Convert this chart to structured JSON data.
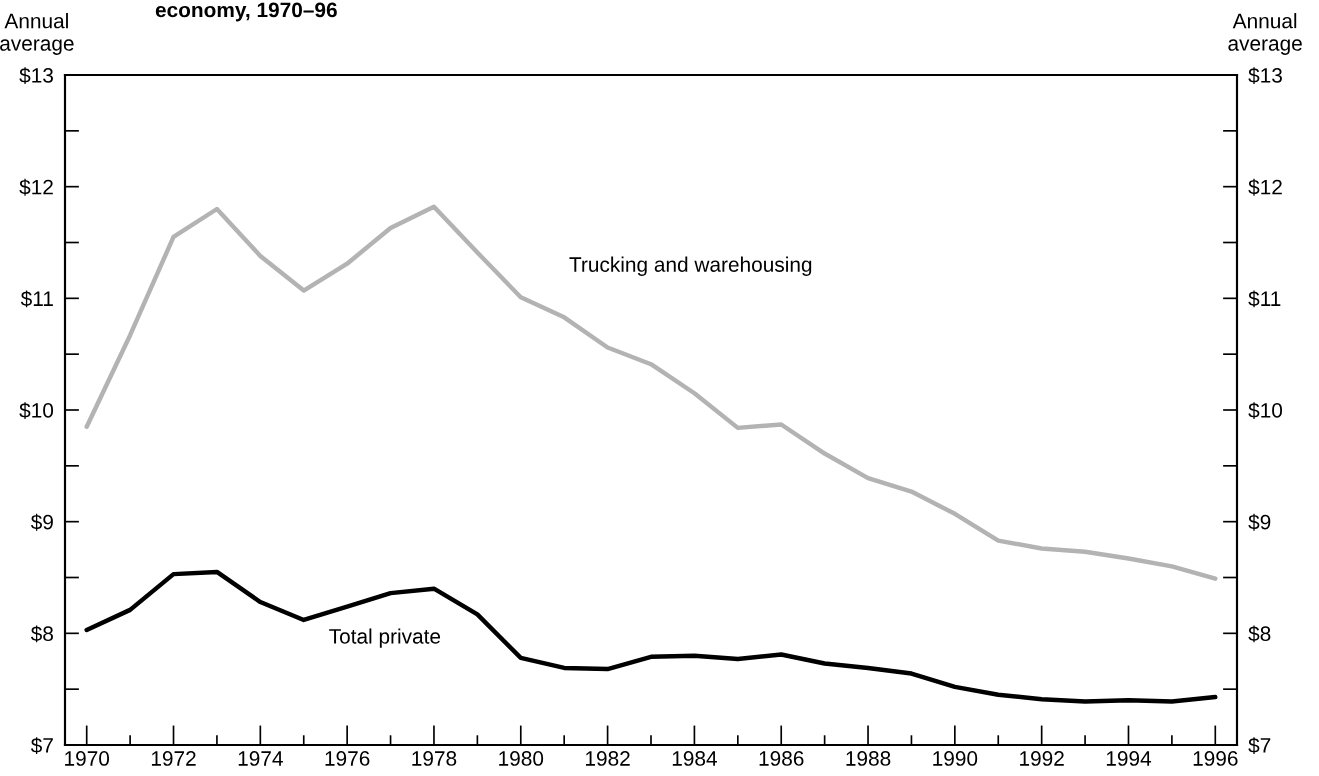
{
  "chart_data": {
    "type": "line",
    "title": "economy, 1970–96",
    "ylabel": "Annual\naverage",
    "y2label": "Annual\naverage",
    "x": [
      1970,
      1971,
      1972,
      1973,
      1974,
      1975,
      1976,
      1977,
      1978,
      1979,
      1980,
      1981,
      1982,
      1983,
      1984,
      1985,
      1986,
      1987,
      1988,
      1989,
      1990,
      1991,
      1992,
      1993,
      1994,
      1995,
      1996
    ],
    "series": [
      {
        "name": "Trucking and warehousing",
        "color": "#b3b3b3",
        "values": [
          9.85,
          10.67,
          11.55,
          11.8,
          11.38,
          11.07,
          11.31,
          11.63,
          11.82,
          11.41,
          11.01,
          10.83,
          10.56,
          10.41,
          10.15,
          9.84,
          9.87,
          9.61,
          9.39,
          9.27,
          9.07,
          8.83,
          8.76,
          8.73,
          8.67,
          8.6,
          8.49
        ]
      },
      {
        "name": "Total private",
        "color": "#000000",
        "values": [
          8.03,
          8.21,
          8.53,
          8.55,
          8.28,
          8.12,
          8.24,
          8.36,
          8.4,
          8.17,
          7.78,
          7.69,
          7.68,
          7.79,
          7.8,
          7.77,
          7.81,
          7.73,
          7.69,
          7.64,
          7.52,
          7.45,
          7.41,
          7.39,
          7.4,
          7.39,
          7.43
        ]
      }
    ],
    "xlim": [
      1969.5,
      1996.5
    ],
    "xticks": [
      1970,
      {
        "value": 1971,
        "label": null
      },
      1972,
      {
        "value": 1973,
        "label": null
      },
      1974,
      {
        "value": 1975,
        "label": null
      },
      1976,
      {
        "value": 1977,
        "label": null
      },
      1978,
      {
        "value": 1979,
        "label": null
      },
      1980,
      {
        "value": 1981,
        "label": null
      },
      1982,
      {
        "value": 1983,
        "label": null
      },
      1984,
      {
        "value": 1985,
        "label": null
      },
      1986,
      {
        "value": 1987,
        "label": null
      },
      1988,
      {
        "value": 1989,
        "label": null
      },
      1990,
      {
        "value": 1991,
        "label": null
      },
      1992,
      {
        "value": 1993,
        "label": null
      },
      1994,
      {
        "value": 1995,
        "label": null
      },
      1996
    ],
    "ylim": [
      7,
      13
    ],
    "yticks": [
      {
        "value": 7,
        "label": "$7"
      },
      {
        "value": 7.5,
        "label": null
      },
      {
        "value": 8,
        "label": "$8"
      },
      {
        "value": 8.5,
        "label": null
      },
      {
        "value": 9,
        "label": "$9"
      },
      {
        "value": 9.5,
        "label": null
      },
      {
        "value": 10,
        "label": "$10"
      },
      {
        "value": 10.5,
        "label": null
      },
      {
        "value": 11,
        "label": "$11"
      },
      {
        "value": 11.5,
        "label": null
      },
      {
        "value": 12,
        "label": "$12"
      },
      {
        "value": 12.5,
        "label": null
      },
      {
        "value": 13,
        "label": "$13"
      }
    ],
    "y2lim": [
      7,
      13
    ],
    "y2ticks": [
      {
        "value": 7,
        "label": "$7"
      },
      {
        "value": 7.5,
        "label": null
      },
      {
        "value": 8,
        "label": "$8"
      },
      {
        "value": 8.5,
        "label": null
      },
      {
        "value": 9,
        "label": "$9"
      },
      {
        "value": 9.5,
        "label": null
      },
      {
        "value": 10,
        "label": "$10"
      },
      {
        "value": 10.5,
        "label": null
      },
      {
        "value": 11,
        "label": "$11"
      },
      {
        "value": 11.5,
        "label": null
      },
      {
        "value": 12,
        "label": "$12"
      },
      {
        "value": 12.5,
        "label": null
      },
      {
        "value": 13,
        "label": "$13"
      }
    ],
    "grid": false,
    "legend": false,
    "marker": "none",
    "line_style": "solid"
  }
}
